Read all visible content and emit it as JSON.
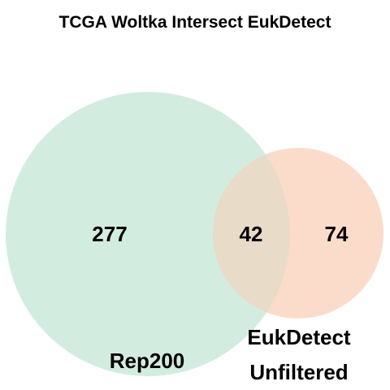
{
  "title": "TCGA Woltka Intersect EukDetect",
  "sets": {
    "left": {
      "label": "Rep200",
      "only_count": "277",
      "color": "#d3ece0"
    },
    "right": {
      "label_line1": "EukDetect",
      "label_line2": "Unfiltered",
      "only_count": "74",
      "color": "#fbdccb"
    },
    "intersection": {
      "count": "42",
      "color": "#e8dbc7"
    }
  }
}
